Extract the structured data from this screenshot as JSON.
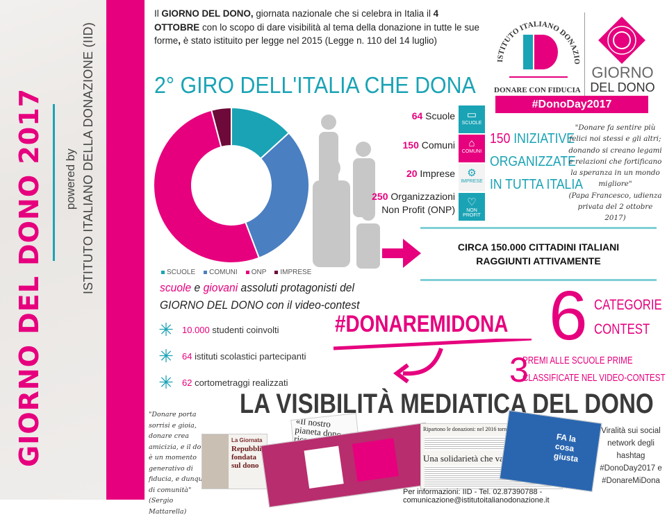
{
  "sidebar": {
    "title": "GIORNO DEL DONO 2017",
    "powered_by": "powered by",
    "institute": "ISTITUTO ITALIANO DELLA DONAZIONE (IID)"
  },
  "intro": {
    "p1": "Il ",
    "b1": "GIORNO DEL DONO,",
    "p2": " giornata nazionale che si celebra in Italia il ",
    "b2": "4 OTTOBRE",
    "p3": " con lo scopo di dare visibilità al tema della donazione in tutte le sue forme",
    "b3": ",",
    "p4": " è stato istituito per legge nel 2015 (Legge n. 110 del 14 luglio)"
  },
  "logo": {
    "arc_text": "ISTITUTO ITALIANO DONAZIONE",
    "monogram": "ID",
    "tagline": "DONARE CON FIDUCIA",
    "brand_line1": "GIORNO",
    "brand_line2": "DEL DONO",
    "hashtag": "#DonoDay2017"
  },
  "section_title": "2° GIRO DELL'ITALIA CHE DONA",
  "colors": {
    "pink": "#e6007e",
    "teal": "#1aa3b5",
    "blue": "#4a7fc1",
    "dark": "#6d0a3a"
  },
  "chart_data": {
    "type": "pie",
    "donut": true,
    "categories": [
      "SCUOLE",
      "COMUNI",
      "ONP",
      "IMPRESE"
    ],
    "values": [
      64,
      150,
      250,
      20
    ],
    "colors": [
      "#1aa3b5",
      "#4a7fc1",
      "#e6007e",
      "#6d0a3a"
    ],
    "legend": "bottom"
  },
  "stats": [
    {
      "num": "64",
      "label": " Scuole",
      "tile": "SCUOLE",
      "icon": "book-icon"
    },
    {
      "num": "150",
      "label": " Comuni",
      "tile": "COMUNI",
      "icon": "building-icon"
    },
    {
      "num": "20",
      "label": " Imprese",
      "tile": "IMPRESE",
      "icon": "gears-icon"
    },
    {
      "num": "250",
      "label": " Organizzazioni",
      "label2": "Non Profit (ONP)",
      "tile": "NON PROFIT",
      "icon": "heart-icon"
    }
  ],
  "initiatives": {
    "num": "150",
    "l1": " INIZIATIVE",
    "l2": "ORGANIZZATE",
    "l3": "IN TUTTA ITALIA"
  },
  "quote_pope": {
    "text": "\"Donare fa sentire più felici noi stessi e gli altri; donando si creano legami e relazioni che fortificano la speranza in un mondo migliore\"",
    "source": "(Papa Francesco, udienza privata del 2 ottobre 2017)"
  },
  "reach": {
    "l1": "CIRCA 150.000 CITTADINI ITALIANI",
    "l2": "RAGGIUNTI ATTIVAMENTE"
  },
  "contest": {
    "w1": "scuole",
    "w2": " e ",
    "w3": "giovani",
    "w4": " assoluti protagonisti del",
    "l2": "GIORNO DEL DONO con il video-contest"
  },
  "bullets": [
    {
      "num": "10.000",
      "text": " studenti coinvolti"
    },
    {
      "num": "64",
      "text": " istituti scolastici partecipanti"
    },
    {
      "num": "62",
      "text": " cortometraggi realizzati"
    }
  ],
  "hashtag": "#DONAREMIDONA",
  "categories": {
    "num": "6",
    "l1": "CATEGORIE",
    "l2": "CONTEST"
  },
  "prizes": {
    "num": "3",
    "l1": "PREMI ALLE SCUOLE PRIME",
    "l2": "CLASSIFICATE NEL VIDEO-CONTEST"
  },
  "media_title": "LA VISIBILITÀ MEDIATICA DEL DONO",
  "quote_mattarella": {
    "text": "\"Donare porta sorrisi e gioia, donare crea amicizia, e il dono è un momento generativo di fiducia, e dunque di comunità\"",
    "source": "(Sergio Mattarella)"
  },
  "clippings": {
    "c1_kicker": "La Giornata",
    "c1_head": "Repubblica fondata sul dono",
    "c2_head": "«Il nostro pianeta dono ricevuto da con",
    "c3_top": "Ripartono le donazioni: nel 2016 tornate ai livelli pre-crisi",
    "c3_head": "Una solidarietà che va oltre le emergenze",
    "c4_text": "FA la cosa giusta"
  },
  "viral": {
    "text": "Viralità sui social network degli hashtag",
    "tag1": "#DonoDay2017 e",
    "tag2": "#DonareMiDona"
  },
  "footer": "Per informazioni: IID - Tel. 02.87390788 - comunicazione@istitutoitalianodonazione.it"
}
